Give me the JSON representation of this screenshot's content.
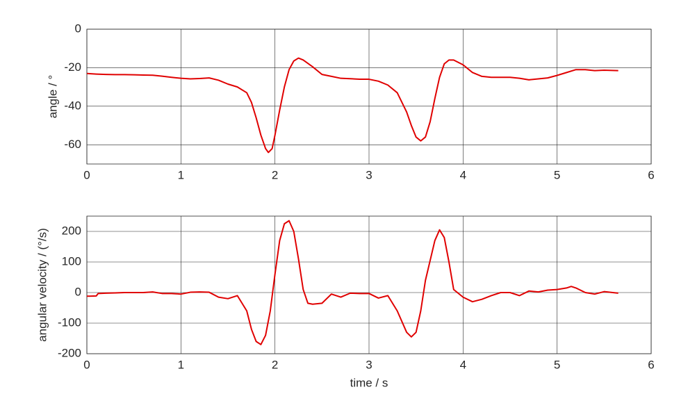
{
  "chart_data": [
    {
      "type": "line",
      "ylabel": "angle / °",
      "color": "#e00000",
      "xlim": [
        0,
        6
      ],
      "xticks": [
        0,
        1,
        2,
        3,
        4,
        5,
        6
      ],
      "ylim": [
        -70,
        0
      ],
      "yticks": [
        -60,
        -40,
        -20,
        0
      ],
      "grid": true,
      "x": [
        0,
        0.1,
        0.2,
        0.3,
        0.4,
        0.5,
        0.6,
        0.7,
        0.8,
        0.9,
        1.0,
        1.1,
        1.2,
        1.3,
        1.4,
        1.5,
        1.6,
        1.7,
        1.75,
        1.8,
        1.85,
        1.9,
        1.93,
        1.97,
        2.0,
        2.05,
        2.1,
        2.15,
        2.2,
        2.25,
        2.3,
        2.4,
        2.5,
        2.6,
        2.7,
        2.8,
        2.9,
        3.0,
        3.1,
        3.2,
        3.3,
        3.4,
        3.45,
        3.5,
        3.55,
        3.6,
        3.65,
        3.7,
        3.75,
        3.8,
        3.85,
        3.9,
        4.0,
        4.1,
        4.2,
        4.3,
        4.4,
        4.5,
        4.6,
        4.7,
        4.8,
        4.9,
        5.0,
        5.1,
        5.2,
        5.3,
        5.4,
        5.5,
        5.65
      ],
      "values": [
        -23,
        -23.3,
        -23.5,
        -23.6,
        -23.6,
        -23.7,
        -23.8,
        -23.9,
        -24.4,
        -25,
        -25.5,
        -25.8,
        -25.6,
        -25.3,
        -26.5,
        -28.5,
        -30,
        -33,
        -38,
        -46,
        -55,
        -62,
        -64,
        -62,
        -55,
        -42,
        -30,
        -21,
        -16.5,
        -15,
        -16,
        -19.5,
        -23.5,
        -24.5,
        -25.5,
        -25.7,
        -26,
        -26,
        -27,
        -29,
        -33,
        -43,
        -50,
        -56,
        -58,
        -56,
        -48,
        -36,
        -25,
        -18,
        -16,
        -16,
        -18.5,
        -22.5,
        -24.5,
        -25,
        -25,
        -25,
        -25.5,
        -26.3,
        -25.8,
        -25.3,
        -24,
        -22.5,
        -21,
        -21,
        -21.5,
        -21.3,
        -21.5
      ]
    },
    {
      "type": "line",
      "ylabel": "angular velocity / (°/s)",
      "xlabel": "time / s",
      "color": "#e00000",
      "xlim": [
        0,
        6
      ],
      "xticks": [
        0,
        1,
        2,
        3,
        4,
        5,
        6
      ],
      "ylim": [
        -200,
        250
      ],
      "yticks": [
        -200,
        -100,
        0,
        100,
        200
      ],
      "grid": true,
      "x": [
        0,
        0.1,
        0.12,
        0.2,
        0.3,
        0.4,
        0.5,
        0.6,
        0.7,
        0.8,
        0.9,
        1.0,
        1.1,
        1.2,
        1.3,
        1.4,
        1.5,
        1.6,
        1.7,
        1.75,
        1.8,
        1.85,
        1.9,
        1.95,
        2.0,
        2.05,
        2.1,
        2.15,
        2.2,
        2.25,
        2.3,
        2.35,
        2.4,
        2.5,
        2.6,
        2.7,
        2.8,
        2.9,
        3.0,
        3.1,
        3.2,
        3.3,
        3.4,
        3.45,
        3.5,
        3.55,
        3.6,
        3.7,
        3.75,
        3.8,
        3.85,
        3.9,
        4.0,
        4.1,
        4.2,
        4.3,
        4.4,
        4.5,
        4.6,
        4.7,
        4.8,
        4.9,
        5.0,
        5.1,
        5.15,
        5.2,
        5.3,
        5.4,
        5.5,
        5.65
      ],
      "values": [
        -12,
        -11,
        -3,
        -2,
        -1,
        0,
        0,
        0,
        2,
        -3,
        -3,
        -5,
        1,
        2,
        1,
        -15,
        -20,
        -10,
        -60,
        -120,
        -160,
        -170,
        -140,
        -60,
        60,
        170,
        225,
        235,
        200,
        110,
        10,
        -35,
        -38,
        -35,
        -5,
        -15,
        -2,
        -3,
        -3,
        -18,
        -10,
        -60,
        -130,
        -145,
        -130,
        -60,
        40,
        170,
        205,
        180,
        100,
        10,
        -15,
        -30,
        -22,
        -10,
        0,
        0,
        -10,
        5,
        2,
        8,
        10,
        15,
        20,
        15,
        0,
        -5,
        3,
        -2
      ]
    }
  ]
}
